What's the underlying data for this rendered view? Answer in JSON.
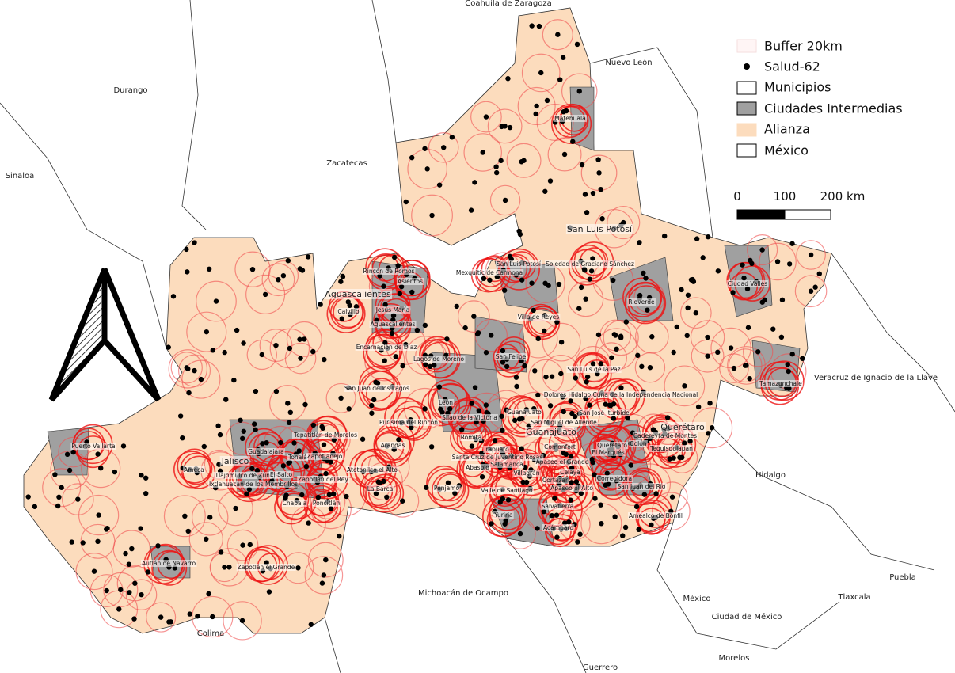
{
  "regions": [
    "Coahuila de Zaragoza",
    "Nuevo León",
    "Durango",
    "Sinaloa",
    "Zacatecas",
    "San Luis Potosí",
    "Aguascalientes",
    "Jalisco",
    "Guanajuato",
    "Querétaro",
    "Hidalgo",
    "Veracruz de Ignacio de la Llave",
    "Michoacán de Ocampo",
    "Colima",
    "Guerrero",
    "México",
    "Ciudad de México",
    "Tlaxcala",
    "Puebla",
    "Morelos"
  ],
  "cities": [
    "Matehuala",
    "San Luis Potosí",
    "Soledad de Graciano Sánchez",
    "Mexquitic de Carmona",
    "Rioverde",
    "Ciudad Valles",
    "Villa de Reyes",
    "Rincón de Romos",
    "Asientos",
    "Calvillo",
    "Jesús María",
    "Aguascalientes",
    "Encarnación de Díaz",
    "Lagos de Moreno",
    "San Felipe",
    "San Luis de la Paz",
    "Tamazunchale",
    "Dolores Hidalgo Cuna de la Independencia Nacional",
    "San Juan de los Lagos",
    "León",
    "Silao de la Victoria",
    "Guanajuato",
    "San José Iturbide",
    "San Miguel de Allende",
    "Cadereyta de Montes",
    "Purísima del Rincón",
    "Romita",
    "Tepatitlán de Morelos",
    "Puerto Vallarta",
    "Guadalajara",
    "Tonalá",
    "Zapotlanejo",
    "Arandas",
    "Irapuato",
    "Comonfort",
    "Querétaro",
    "Colón",
    "El Marqués",
    "Tequisquiapan",
    "Santa Cruz de Juventino Rosas",
    "Apaseo el Grande",
    "Ameca",
    "Tlajomulco de Zúñiga",
    "El Salto",
    "Ixtlahuacán de los Membrillos",
    "Zapotlán del Rey",
    "Atotonilco el Alto",
    "Abasolo",
    "Salamanca",
    "Celaya",
    "Villagrán",
    "Cortazar",
    "Corregidora",
    "San Juan del Río",
    "La Barca",
    "Pénjamo",
    "Valle de Santiago",
    "Apaseo el Alto",
    "Poncitlán",
    "Chapala",
    "Salvatierra",
    "Yuriria",
    "Acámbaro",
    "Amealco de Bonfil",
    "Autlán de Navarro",
    "Zapotlán el Grande"
  ],
  "legend": {
    "items": [
      "Buffer 20km",
      "Salud-62",
      "Municipios",
      "Ciudades Intermedias",
      "Alianza",
      "México"
    ]
  },
  "scale_bar": {
    "labels": [
      "0",
      "100",
      "200 km"
    ]
  }
}
